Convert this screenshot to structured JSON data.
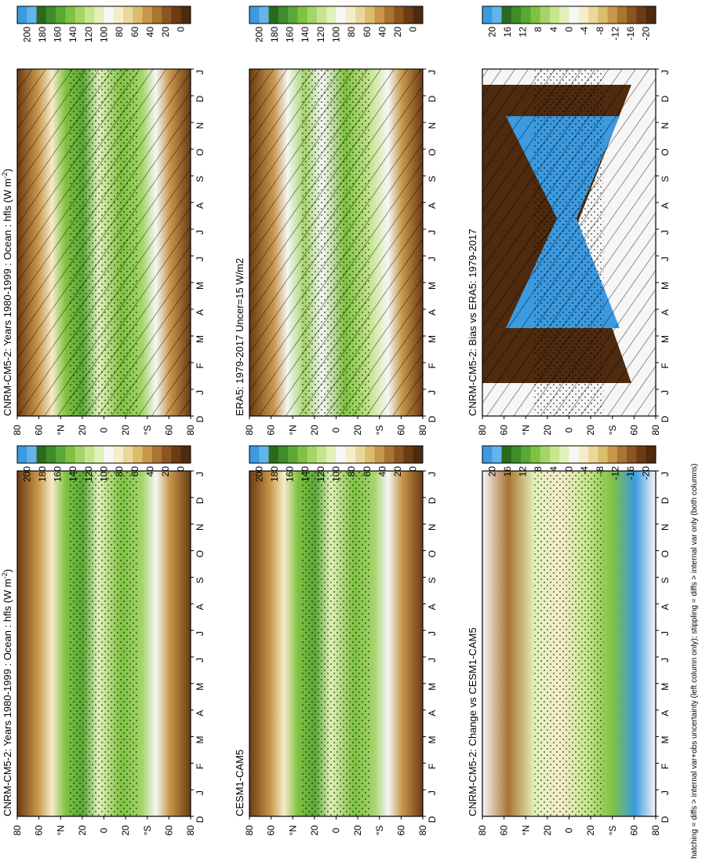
{
  "figure": {
    "footnote": "hatching = diffs > internal var+obs uncertainty (left column only); stippling = diffs > internal var only (both columns)"
  },
  "chart_data": [
    {
      "id": "p1",
      "type": "heatmap",
      "title": "CNRM-CM5-2: Years 1980-1999 : Ocean : hfls (W m",
      "title_sup": "-2",
      "title_tail": ")",
      "x_ticks": [
        "D",
        "J",
        "F",
        "M",
        "A",
        "M",
        "J",
        "J",
        "A",
        "S",
        "O",
        "N",
        "D",
        "J"
      ],
      "y_ticks": [
        "80",
        "60",
        "°N",
        "20",
        "0",
        "20",
        "°S",
        "60",
        "80"
      ],
      "colorbar": {
        "ticks": [
          "200",
          "180",
          "160",
          "140",
          "120",
          "100",
          "80",
          "60",
          "40",
          "20",
          "0"
        ],
        "colors": [
          "#3b9ae0",
          "#62b4ea",
          "#2b6a1d",
          "#3e8c2a",
          "#5aa836",
          "#7fc241",
          "#a4d46a",
          "#c6e68e",
          "#e1f1ba",
          "#f6f6f6",
          "#f5ecc9",
          "#ecd79a",
          "#dcbc6d",
          "#c8974b",
          "#aa7433",
          "#8b5421",
          "#6b3b13",
          "#4e2a0e"
        ]
      },
      "hatching": true,
      "stippling": true
    },
    {
      "id": "p2",
      "type": "heatmap",
      "title": "CNRM-CM5-2: Years 1980-1999 : Ocean : hfls (W m",
      "title_sup": "-2",
      "title_tail": ")",
      "x_ticks": [
        "D",
        "J",
        "F",
        "M",
        "A",
        "M",
        "J",
        "J",
        "A",
        "S",
        "O",
        "N",
        "D",
        "J"
      ],
      "y_ticks": [
        "80",
        "60",
        "°N",
        "20",
        "0",
        "20",
        "°S",
        "60",
        "80"
      ],
      "colorbar": {
        "ticks": [
          "200",
          "180",
          "160",
          "140",
          "120",
          "100",
          "80",
          "60",
          "40",
          "20",
          "0"
        ],
        "colors": [
          "#3b9ae0",
          "#62b4ea",
          "#2b6a1d",
          "#3e8c2a",
          "#5aa836",
          "#7fc241",
          "#a4d46a",
          "#c6e68e",
          "#e1f1ba",
          "#f6f6f6",
          "#f5ecc9",
          "#ecd79a",
          "#dcbc6d",
          "#c8974b",
          "#aa7433",
          "#8b5421",
          "#6b3b13",
          "#4e2a0e"
        ]
      },
      "hatching": false,
      "stippling": true
    },
    {
      "id": "p3",
      "type": "heatmap",
      "title": "ERA5: 1979-2017 Uncer=15 W/m2",
      "x_ticks": [
        "D",
        "J",
        "F",
        "M",
        "A",
        "M",
        "J",
        "J",
        "A",
        "S",
        "O",
        "N",
        "D",
        "J"
      ],
      "y_ticks": [
        "80",
        "60",
        "°N",
        "20",
        "0",
        "20",
        "°S",
        "60",
        "80"
      ],
      "colorbar": {
        "ticks": [
          "200",
          "180",
          "160",
          "140",
          "120",
          "100",
          "80",
          "60",
          "40",
          "20",
          "0"
        ],
        "colors": [
          "#3b9ae0",
          "#62b4ea",
          "#2b6a1d",
          "#3e8c2a",
          "#5aa836",
          "#7fc241",
          "#a4d46a",
          "#c6e68e",
          "#e1f1ba",
          "#f6f6f6",
          "#f5ecc9",
          "#ecd79a",
          "#dcbc6d",
          "#c8974b",
          "#aa7433",
          "#8b5421",
          "#6b3b13",
          "#4e2a0e"
        ]
      },
      "hatching": true,
      "stippling": true
    },
    {
      "id": "p4",
      "type": "heatmap",
      "title": "CESM1-CAM5",
      "x_ticks": [
        "D",
        "J",
        "F",
        "M",
        "A",
        "M",
        "J",
        "J",
        "A",
        "S",
        "O",
        "N",
        "D",
        "J"
      ],
      "y_ticks": [
        "80",
        "60",
        "°N",
        "20",
        "0",
        "20",
        "°S",
        "60",
        "80"
      ],
      "colorbar": {
        "ticks": [
          "200",
          "180",
          "160",
          "140",
          "120",
          "100",
          "80",
          "60",
          "40",
          "20",
          "0"
        ],
        "colors": [
          "#3b9ae0",
          "#62b4ea",
          "#2b6a1d",
          "#3e8c2a",
          "#5aa836",
          "#7fc241",
          "#a4d46a",
          "#c6e68e",
          "#e1f1ba",
          "#f6f6f6",
          "#f5ecc9",
          "#ecd79a",
          "#dcbc6d",
          "#c8974b",
          "#aa7433",
          "#8b5421",
          "#6b3b13",
          "#4e2a0e"
        ]
      },
      "hatching": false,
      "stippling": true
    },
    {
      "id": "p5",
      "type": "heatmap",
      "title": "CNRM-CM5-2: Bias vs ERA5: 1979-2017",
      "x_ticks": [
        "D",
        "J",
        "F",
        "M",
        "A",
        "M",
        "J",
        "J",
        "A",
        "S",
        "O",
        "N",
        "D",
        "J"
      ],
      "y_ticks": [
        "80",
        "60",
        "°N",
        "20",
        "0",
        "20",
        "°S",
        "60",
        "80"
      ],
      "colorbar": {
        "ticks": [
          "20",
          "16",
          "12",
          "8",
          "4",
          "0",
          "-4",
          "-8",
          "-12",
          "-16",
          "-20"
        ],
        "colors": [
          "#3b9ae0",
          "#62b4ea",
          "#2b6a1d",
          "#3e8c2a",
          "#5aa836",
          "#7fc241",
          "#a4d46a",
          "#c6e68e",
          "#e1f1ba",
          "#f6f6f6",
          "#f5ecc9",
          "#ecd79a",
          "#dcbc6d",
          "#c8974b",
          "#aa7433",
          "#8b5421",
          "#6b3b13",
          "#4e2a0e"
        ]
      },
      "hatching": true,
      "stippling": true
    },
    {
      "id": "p6",
      "type": "heatmap",
      "title": "CNRM-CM5-2: Change vs CESM1-CAM5",
      "x_ticks": [
        "D",
        "J",
        "F",
        "M",
        "A",
        "M",
        "J",
        "J",
        "A",
        "S",
        "O",
        "N",
        "D",
        "J"
      ],
      "y_ticks": [
        "80",
        "60",
        "°N",
        "20",
        "0",
        "20",
        "°S",
        "60",
        "80"
      ],
      "colorbar": {
        "ticks": [
          "20",
          "16",
          "12",
          "8",
          "4",
          "0",
          "-4",
          "-8",
          "-12",
          "-16",
          "-20"
        ],
        "colors": [
          "#3b9ae0",
          "#62b4ea",
          "#2b6a1d",
          "#3e8c2a",
          "#5aa836",
          "#7fc241",
          "#a4d46a",
          "#c6e68e",
          "#e1f1ba",
          "#f6f6f6",
          "#f5ecc9",
          "#ecd79a",
          "#dcbc6d",
          "#c8974b",
          "#aa7433",
          "#8b5421",
          "#6b3b13",
          "#4e2a0e"
        ]
      },
      "hatching": false,
      "stippling": true
    }
  ]
}
